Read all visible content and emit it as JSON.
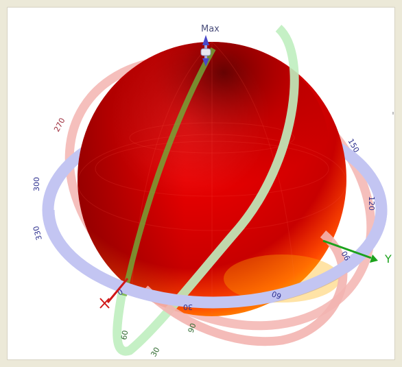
{
  "viewer": {
    "max_label": "Max",
    "axis_y_label": "Y",
    "colors": {
      "background": "#ece9d8",
      "azimuth_ring": "#c3c5f2",
      "elevation_ring_red": "#f3b4b0",
      "elevation_ring_green": "#bfeebf",
      "sphere_dark": "#7a0000",
      "sphere_mid": "#e10000",
      "sphere_light": "#ff8a00",
      "y_axis": "#1ca21c",
      "x_axis": "#d01818",
      "z_axis": "#4848c8"
    },
    "ring_labels": {
      "azimuth": [
        "270",
        "300",
        "330",
        "0",
        "30",
        "60",
        "90",
        "120",
        "150"
      ],
      "green": [
        "90",
        "60",
        "30"
      ]
    },
    "icons": [
      "x-axis-marker-icon",
      "y-axis-arrow-icon",
      "max-arrow-icon"
    ]
  }
}
